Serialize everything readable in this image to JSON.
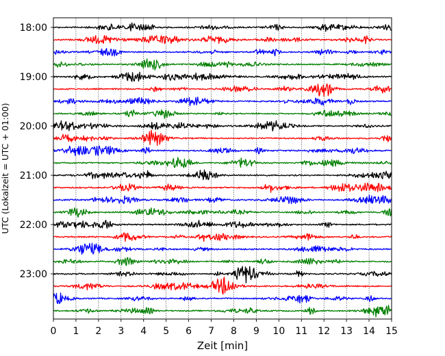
{
  "chart_data": {
    "type": "line",
    "title": "",
    "xlabel": "Zeit  [min]",
    "ylabel": "UTC (Lokalzeit = UTC + 01:00)",
    "xlim": [
      0,
      15
    ],
    "x_ticks": [
      "0",
      "1",
      "2",
      "3",
      "4",
      "5",
      "6",
      "7",
      "8",
      "9",
      "10",
      "11",
      "12",
      "13",
      "14",
      "15"
    ],
    "y_tick_labels": [
      "18:00",
      "19:00",
      "20:00",
      "21:00",
      "22:00",
      "23:00"
    ],
    "traces_per_hour": 4,
    "trace_minutes": 15,
    "trace_start_time": "18:00",
    "trace_count": 24,
    "trace_colors": [
      "#000000",
      "#ff0000",
      "#0000ff",
      "#007f00"
    ],
    "grid": "vertical-dotted",
    "legend": "none",
    "seismogram_note": "signal"
  }
}
